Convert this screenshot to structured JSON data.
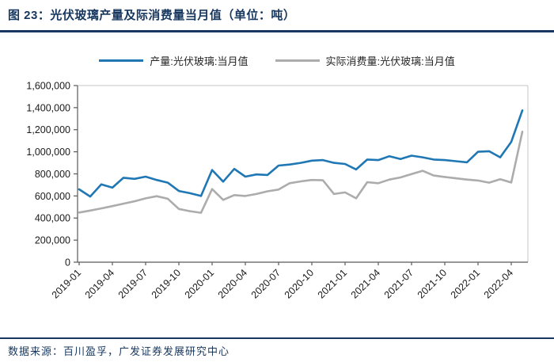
{
  "header": {
    "title": "图 23：光伏玻璃产量及际消费量当月值（单位：吨）"
  },
  "footer": {
    "source": "数据来源：百川盈孚，广发证券发展研究中心"
  },
  "colors": {
    "accent_navy": "#17375E",
    "production_blue": "#1F77B4",
    "consumption_gray": "#ACACAC",
    "axis_line": "#595959",
    "plot_border": "#C6C6C6",
    "tick_text": "#1A1A1A"
  },
  "chart_data": {
    "type": "line",
    "title": "图 23：光伏玻璃产量及际消费量当月值（单位：吨）",
    "xlabel": "",
    "ylabel": "",
    "unit": "吨",
    "grid": false,
    "legend_position": "top",
    "ylim": [
      0,
      1600000
    ],
    "y_ticks": [
      0,
      200000,
      400000,
      600000,
      800000,
      1000000,
      1200000,
      1400000,
      1600000
    ],
    "x": [
      "2019-01",
      "2019-02",
      "2019-03",
      "2019-04",
      "2019-05",
      "2019-06",
      "2019-07",
      "2019-08",
      "2019-09",
      "2019-10",
      "2019-11",
      "2019-12",
      "2020-01",
      "2020-02",
      "2020-03",
      "2020-04",
      "2020-05",
      "2020-06",
      "2020-07",
      "2020-08",
      "2020-09",
      "2020-10",
      "2020-11",
      "2020-12",
      "2021-01",
      "2021-02",
      "2021-03",
      "2021-04",
      "2021-05",
      "2021-06",
      "2021-07",
      "2021-08",
      "2021-09",
      "2021-10",
      "2021-11",
      "2021-12",
      "2022-01",
      "2022-02",
      "2022-03",
      "2022-04",
      "2022-05"
    ],
    "x_tick_labels": [
      "2019-01",
      "2019-04",
      "2019-07",
      "2019-10",
      "2020-01",
      "2020-04",
      "2020-07",
      "2020-10",
      "2021-01",
      "2021-04",
      "2021-07",
      "2021-10",
      "2022-01",
      "2022-04"
    ],
    "x_tick_every": 3,
    "series": [
      {
        "name": "产量:光伏玻璃:当月值",
        "color": "#1F77B4",
        "values": [
          660000,
          595000,
          705000,
          675000,
          765000,
          755000,
          775000,
          745000,
          720000,
          645000,
          625000,
          600000,
          835000,
          730000,
          845000,
          775000,
          795000,
          790000,
          875000,
          885000,
          900000,
          920000,
          925000,
          900000,
          890000,
          840000,
          930000,
          925000,
          960000,
          935000,
          965000,
          950000,
          930000,
          925000,
          915000,
          905000,
          1000000,
          1005000,
          950000,
          1090000,
          1375000
        ]
      },
      {
        "name": "实际消费量:光伏玻璃:当月值",
        "color": "#ACACAC",
        "values": [
          450000,
          468000,
          487000,
          508000,
          530000,
          552000,
          578000,
          598000,
          575000,
          482000,
          462000,
          448000,
          662000,
          565000,
          608000,
          600000,
          618000,
          642000,
          658000,
          715000,
          732000,
          745000,
          742000,
          618000,
          632000,
          578000,
          725000,
          715000,
          748000,
          768000,
          798000,
          828000,
          785000,
          772000,
          760000,
          748000,
          740000,
          720000,
          752000,
          722000,
          1182000
        ]
      }
    ]
  }
}
